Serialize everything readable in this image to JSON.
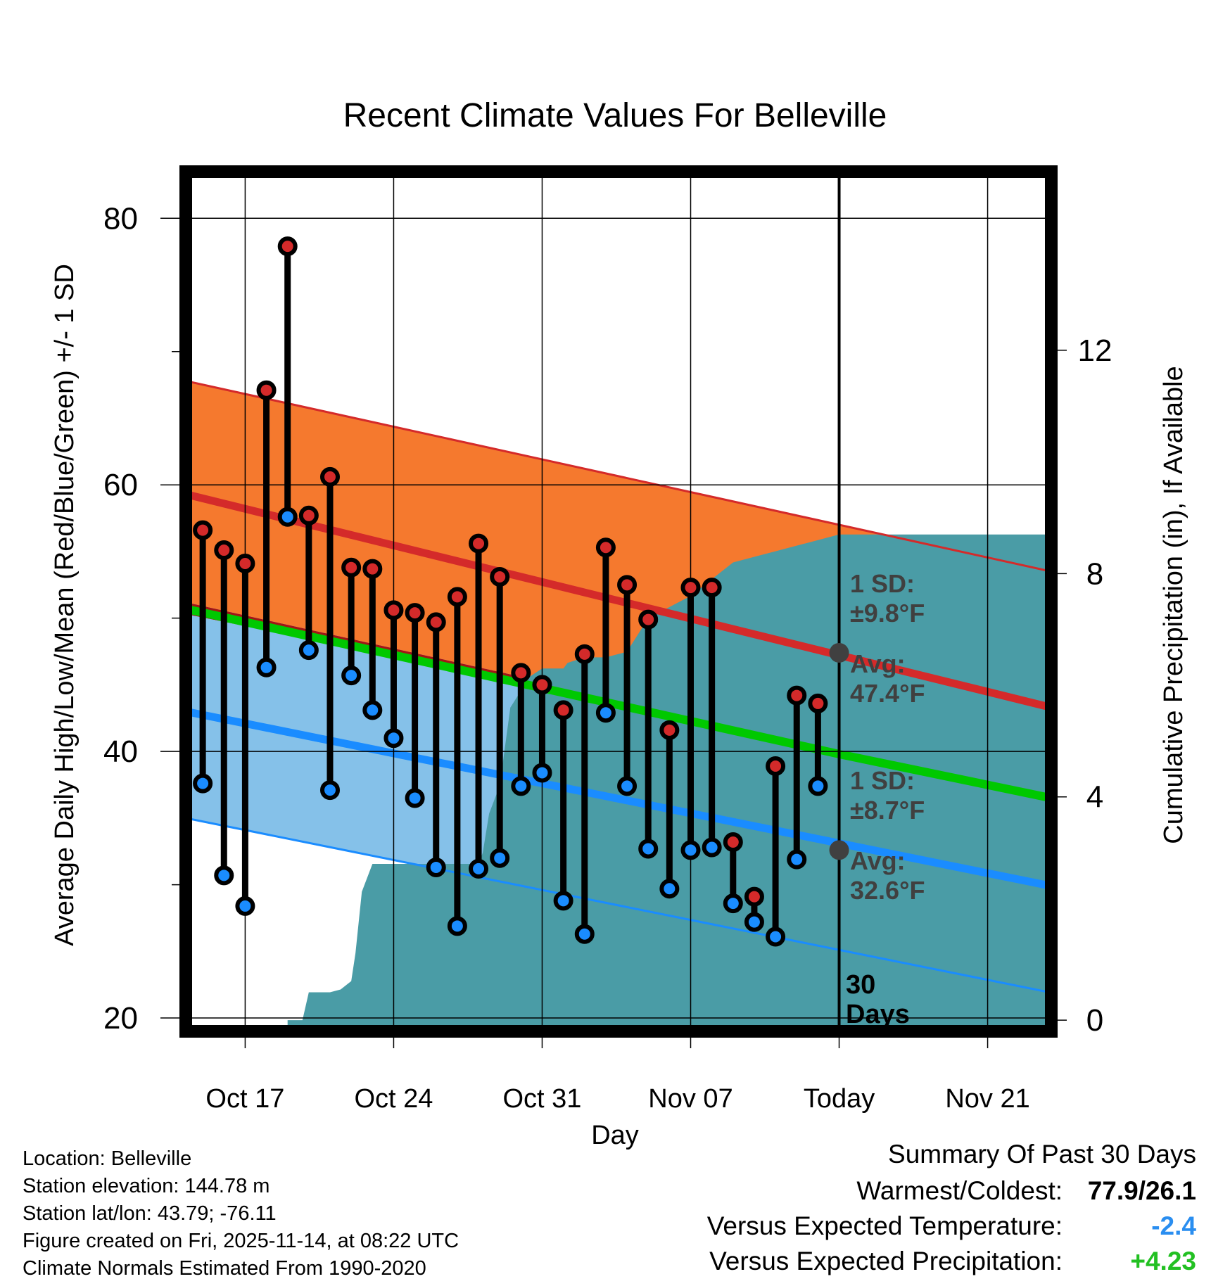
{
  "chart_data": {
    "type": "line",
    "title": "Recent Climate Values For Belleville",
    "xlabel": "Day",
    "ylabel": "Average Daily High/Low/Mean (Red/Blue/Green) +/- 1 SD",
    "y2label": "Cumulative Precipitation (in), If Available",
    "x_ticks": [
      "Oct 17",
      "Oct 24",
      "Oct 31",
      "Nov 07",
      "Today",
      "Nov 21"
    ],
    "x_tick_days": [
      3,
      10,
      17,
      24,
      31,
      38
    ],
    "xlim": [
      0.2,
      41
    ],
    "ylim": [
      19,
      83.5
    ],
    "y_ticks": [
      20,
      40,
      60,
      80
    ],
    "y2lim": [
      -0.2,
      15.2
    ],
    "y2_ticks": [
      0,
      4,
      8,
      12
    ],
    "grid": true,
    "today_day": 31,
    "colors": {
      "high": "#d42a2a",
      "low": "#1a8cff",
      "mean": "#00c800",
      "high_band": "#f5792e",
      "low_band": "#85c1e9",
      "precip": "#4a9ca6",
      "mean_band": "#a01616",
      "marker_edge": "#000000"
    },
    "normals": {
      "high_upper": [
        [
          0.2,
          67.8
        ],
        [
          41,
          53.5
        ]
      ],
      "high_avg": [
        [
          0.2,
          59.3
        ],
        [
          41,
          43.3
        ]
      ],
      "mean": [
        [
          0.2,
          51.2
        ],
        [
          31,
          40.3
        ],
        [
          41,
          37.0
        ]
      ],
      "low_avg": [
        [
          0.2,
          43.0
        ],
        [
          41,
          29.9
        ]
      ],
      "low_lower": [
        [
          0.2,
          35.0
        ],
        [
          41,
          21.9
        ]
      ]
    },
    "series": [
      {
        "name": "High",
        "days": [
          1,
          2,
          3,
          4,
          5,
          6,
          7,
          8,
          9,
          10,
          11,
          12,
          13,
          14,
          15,
          16,
          17,
          18,
          19,
          20,
          21,
          22,
          23,
          24,
          25,
          26,
          27,
          28,
          29,
          30
        ],
        "values": [
          56.6,
          55.1,
          54.1,
          67.1,
          77.9,
          57.7,
          60.6,
          53.8,
          53.7,
          50.6,
          50.4,
          49.7,
          51.6,
          55.6,
          53.1,
          45.9,
          45.0,
          43.1,
          47.3,
          55.3,
          52.5,
          49.9,
          41.6,
          52.3,
          52.3,
          33.2,
          29.1,
          38.9,
          44.2,
          43.6
        ]
      },
      {
        "name": "Low",
        "days": [
          1,
          2,
          3,
          4,
          5,
          6,
          7,
          8,
          9,
          10,
          11,
          12,
          13,
          14,
          15,
          16,
          17,
          18,
          19,
          20,
          21,
          22,
          23,
          24,
          25,
          26,
          27,
          28,
          29,
          30
        ],
        "values": [
          37.6,
          30.7,
          28.4,
          46.3,
          57.6,
          47.6,
          37.1,
          45.7,
          43.1,
          41.0,
          36.5,
          31.3,
          26.9,
          31.2,
          32.0,
          37.4,
          38.4,
          28.8,
          26.3,
          42.9,
          37.4,
          32.7,
          29.7,
          32.6,
          32.8,
          28.6,
          27.2,
          26.1,
          31.9,
          37.4
        ]
      },
      {
        "name": "Cumulative Precipitation",
        "days": [
          5,
          5.7,
          6,
          7,
          7.5,
          8,
          8.2,
          8.5,
          9,
          12,
          13,
          14,
          14.2,
          14.5,
          15,
          15.5,
          16,
          16.2,
          17,
          18,
          18.2,
          19,
          20,
          21,
          22,
          23,
          24,
          25,
          26,
          27,
          28,
          29,
          30,
          31,
          41
        ],
        "values": [
          0,
          0,
          0.5,
          0.5,
          0.55,
          0.7,
          1.2,
          2.3,
          2.8,
          2.8,
          2.8,
          2.8,
          3.0,
          3.7,
          4.2,
          5.6,
          5.9,
          6.1,
          6.3,
          6.3,
          6.4,
          6.5,
          6.5,
          6.6,
          7.2,
          7.4,
          7.6,
          7.9,
          8.2,
          8.3,
          8.4,
          8.5,
          8.6,
          8.7,
          8.7
        ]
      }
    ],
    "annotations": {
      "high_sd": {
        "line1": "1 SD:",
        "line2": "±9.8°F",
        "value": 9.8
      },
      "high_avg": {
        "line1": "Avg:",
        "line2": "47.4°F",
        "value": 47.4
      },
      "low_sd": {
        "line1": "1 SD:",
        "line2": "±8.7°F",
        "value": 8.7
      },
      "low_avg": {
        "line1": "Avg:",
        "line2": "32.6°F",
        "value": 32.6
      },
      "window": {
        "line1": "30",
        "line2": "Days"
      }
    }
  },
  "info": {
    "location": "Location: Belleville",
    "elevation": "Station elevation: 144.78 m",
    "latlon": "Station lat/lon: 43.79; -76.11",
    "created": "Figure created on Fri, 2025-11-14, at 08:22 UTC",
    "normals": "Climate Normals Estimated From 1990-2020"
  },
  "summary": {
    "title": "Summary Of Past 30 Days",
    "warmest_label": "Warmest/Coldest:",
    "warmest_value": "77.9/26.1",
    "temp_label": "Versus Expected Temperature:",
    "temp_value": "-2.4",
    "temp_color": "#2a8ef0",
    "precip_label": "Versus Expected Precipitation:",
    "precip_value": "+4.23",
    "precip_color": "#22c022"
  }
}
